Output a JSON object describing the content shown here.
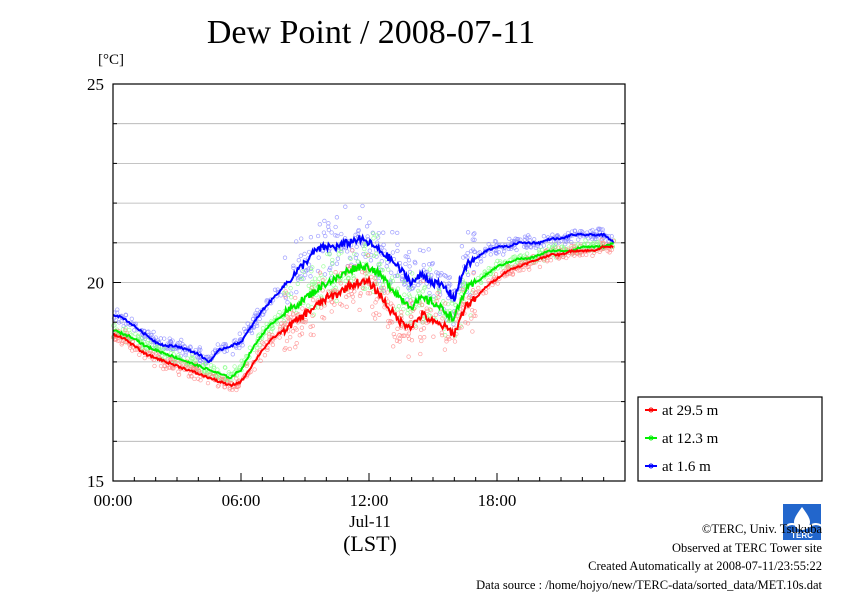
{
  "title": "Dew Point / 2008-07-11",
  "y_unit": "[°C]",
  "x_date": "Jul-11",
  "x_axis_label": "(LST)",
  "credits": {
    "copyright": "©TERC, Univ. Tsukuba",
    "site": "Observed at TERC Tower site",
    "created": "Created Automatically at 2008-07-11/23:55:22",
    "source": "Data source : /home/hojyo/new/TERC-data/sorted_data/MET.10s.dat"
  },
  "logo": {
    "icon": "terc-logo-icon",
    "text": "TERC"
  },
  "colors": {
    "s29": "#ff0000",
    "s12": "#00ee00",
    "s1": "#0000ff"
  },
  "chart_data": {
    "type": "line",
    "title": "Dew Point / 2008-07-11",
    "xlabel": "(LST)",
    "ylabel": "[°C]",
    "x_unit": "hour of day",
    "xlim": [
      0,
      23.5
    ],
    "ylim": [
      15,
      25
    ],
    "x_ticks": [
      0,
      6,
      12,
      18
    ],
    "x_tick_labels": [
      "00:00",
      "06:00",
      "12:00",
      "18:00"
    ],
    "y_ticks": [
      15,
      20,
      25
    ],
    "y_tick_labels": [
      "15",
      "20",
      "25"
    ],
    "y_minor_step": 1,
    "legend_position": "lower-right, outside plot",
    "x": [
      0,
      0.5,
      1,
      1.5,
      2,
      2.5,
      3,
      3.5,
      4,
      4.5,
      5,
      5.5,
      6,
      6.5,
      7,
      7.5,
      8,
      8.5,
      9,
      9.5,
      10,
      10.5,
      11,
      11.5,
      12,
      12.5,
      13,
      13.5,
      14,
      14.5,
      15,
      15.5,
      16,
      16.5,
      17,
      17.5,
      18,
      18.5,
      19,
      19.5,
      20,
      20.5,
      21,
      21.5,
      22,
      22.5,
      23,
      23.5
    ],
    "series": [
      {
        "name": "at 29.5 m",
        "color": "#ff0000",
        "values": [
          18.7,
          18.6,
          18.4,
          18.2,
          18.1,
          18.0,
          17.9,
          17.8,
          17.7,
          17.6,
          17.5,
          17.4,
          17.5,
          17.9,
          18.3,
          18.6,
          18.8,
          19.0,
          19.2,
          19.4,
          19.6,
          19.7,
          19.9,
          20.0,
          20.0,
          19.7,
          19.3,
          19.0,
          18.9,
          19.2,
          19.0,
          18.9,
          18.7,
          19.4,
          19.6,
          19.9,
          20.1,
          20.3,
          20.4,
          20.5,
          20.6,
          20.7,
          20.7,
          20.8,
          20.8,
          20.8,
          20.9,
          20.9
        ]
      },
      {
        "name": "at 12.3 m",
        "color": "#00ee00",
        "values": [
          18.8,
          18.7,
          18.6,
          18.4,
          18.3,
          18.2,
          18.1,
          18.0,
          17.9,
          17.8,
          17.7,
          17.6,
          17.8,
          18.3,
          18.7,
          19.0,
          19.2,
          19.4,
          19.6,
          19.8,
          20.0,
          20.1,
          20.3,
          20.4,
          20.4,
          20.2,
          19.9,
          19.6,
          19.4,
          19.6,
          19.5,
          19.3,
          19.1,
          19.8,
          20.0,
          20.2,
          20.4,
          20.5,
          20.6,
          20.6,
          20.7,
          20.8,
          20.8,
          20.8,
          20.9,
          20.9,
          20.9,
          21.0
        ]
      },
      {
        "name": "at 1.6 m",
        "color": "#0000ff",
        "values": [
          19.2,
          19.1,
          18.9,
          18.7,
          18.5,
          18.4,
          18.4,
          18.3,
          18.2,
          18.0,
          18.3,
          18.4,
          18.5,
          18.9,
          19.3,
          19.6,
          19.9,
          20.2,
          20.5,
          20.8,
          20.9,
          20.9,
          21.0,
          21.1,
          21.0,
          20.8,
          20.6,
          20.3,
          20.0,
          20.2,
          20.0,
          19.9,
          19.6,
          20.4,
          20.6,
          20.8,
          20.9,
          20.9,
          21.0,
          21.0,
          21.0,
          21.1,
          21.1,
          21.2,
          21.2,
          21.2,
          21.2,
          21.0
        ]
      }
    ]
  }
}
